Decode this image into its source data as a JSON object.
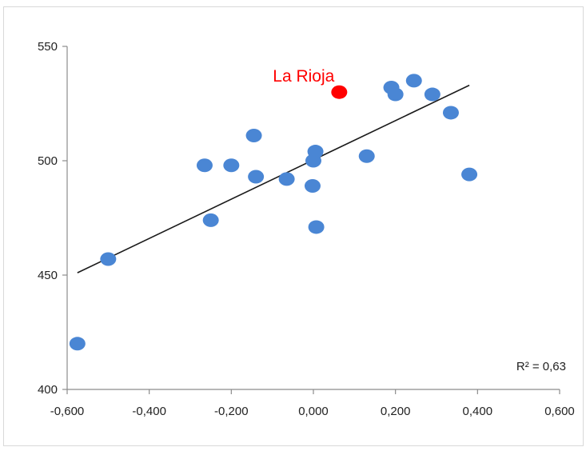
{
  "chart_data": {
    "type": "scatter",
    "title": "",
    "xlabel": "",
    "ylabel": "",
    "xlim": [
      -0.6,
      0.6
    ],
    "ylim": [
      400,
      550
    ],
    "xticks": [
      -0.6,
      -0.4,
      -0.2,
      0.0,
      0.2,
      0.4,
      0.6
    ],
    "xtick_labels": [
      "-0,600",
      "-0,400",
      "-0,200",
      "0,000",
      "0,200",
      "0,400",
      "0,600"
    ],
    "yticks": [
      400,
      450,
      500,
      550
    ],
    "ytick_labels": [
      "400",
      "450",
      "500",
      "550"
    ],
    "grid": false,
    "legend": "none",
    "point_color": "#4a86d4",
    "highlight_color": "#ff0000",
    "trendline_color": "#1a1a1a",
    "series": [
      {
        "points": [
          {
            "x": -0.575,
            "y": 420
          },
          {
            "x": -0.5,
            "y": 457
          },
          {
            "x": -0.265,
            "y": 498
          },
          {
            "x": -0.25,
            "y": 474
          },
          {
            "x": -0.2,
            "y": 498
          },
          {
            "x": -0.145,
            "y": 511
          },
          {
            "x": -0.14,
            "y": 493
          },
          {
            "x": -0.065,
            "y": 492
          },
          {
            "x": 0.0,
            "y": 500
          },
          {
            "x": -0.002,
            "y": 489
          },
          {
            "x": 0.005,
            "y": 504
          },
          {
            "x": 0.007,
            "y": 471
          },
          {
            "x": 0.13,
            "y": 502
          },
          {
            "x": 0.19,
            "y": 532
          },
          {
            "x": 0.2,
            "y": 529
          },
          {
            "x": 0.245,
            "y": 535
          },
          {
            "x": 0.29,
            "y": 529
          },
          {
            "x": 0.335,
            "y": 521
          },
          {
            "x": 0.38,
            "y": 494
          }
        ]
      }
    ],
    "highlight": {
      "label": "La Rioja",
      "x": 0.063,
      "y": 530
    },
    "trendline": {
      "x0": -0.575,
      "y0": 451,
      "x1": 0.38,
      "y1": 533
    },
    "annotation": "R² = 0,63"
  }
}
